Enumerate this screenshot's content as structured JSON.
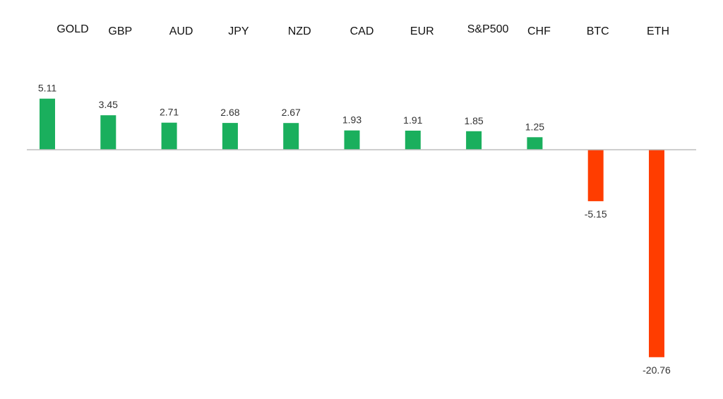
{
  "chart_data": {
    "type": "bar",
    "title": "",
    "xlabel": "",
    "ylabel": "",
    "categories": [
      "GOLD",
      "GBP",
      "AUD",
      "JPY",
      "NZD",
      "CAD",
      "EUR",
      "S&P500",
      "CHF",
      "BTC",
      "ETH"
    ],
    "values": [
      5.11,
      3.45,
      2.71,
      2.68,
      2.67,
      1.93,
      1.91,
      1.85,
      1.25,
      -5.15,
      -20.76
    ],
    "value_labels": [
      "5.11",
      "3.45",
      "2.71",
      "2.68",
      "2.67",
      "1.93",
      "1.91",
      "1.85",
      "1.25",
      "-5.15",
      "-20.76"
    ],
    "ylim": [
      -23,
      6
    ],
    "grid": false,
    "legend": "none",
    "colors": {
      "positive": "#1aaf5d",
      "negative": "#ff3d00",
      "axis": "#bdbdbd"
    }
  }
}
